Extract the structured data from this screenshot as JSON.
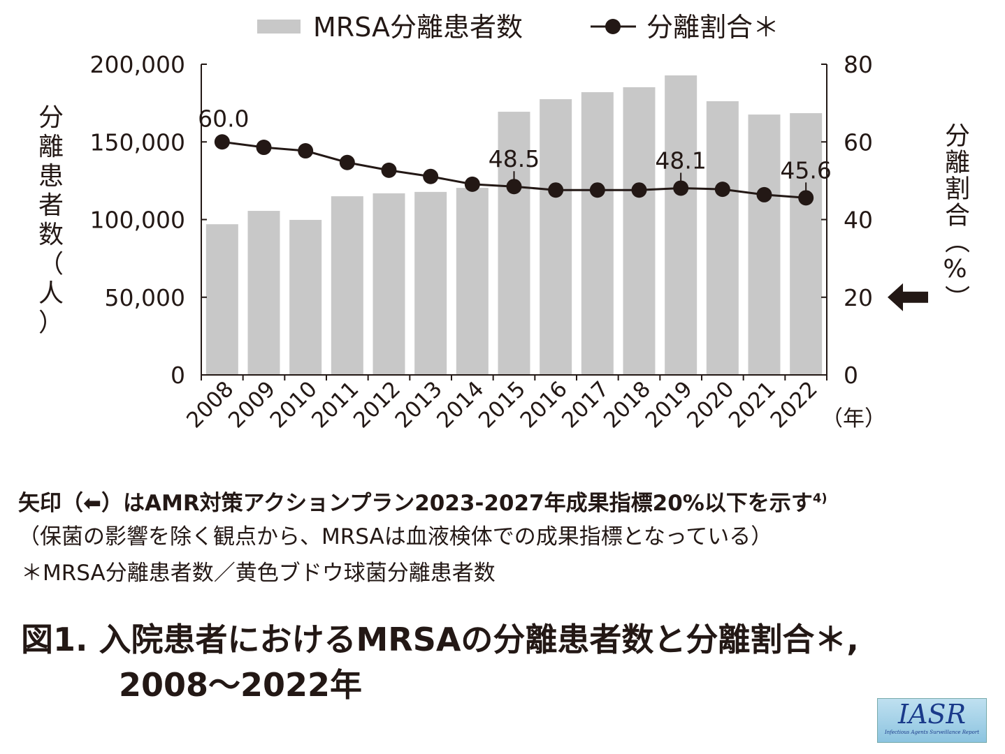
{
  "chart_data": {
    "type": "bar+line",
    "categories": [
      "2008",
      "2009",
      "2010",
      "2011",
      "2012",
      "2013",
      "2014",
      "2015",
      "2016",
      "2017",
      "2018",
      "2019",
      "2020",
      "2021",
      "2022"
    ],
    "series": [
      {
        "name": "MRSA分離患者数",
        "type": "bar",
        "axis": "left",
        "color": "#c8c8c8",
        "values": [
          97000,
          105600,
          99800,
          115000,
          116900,
          117800,
          120400,
          169400,
          177500,
          182000,
          185200,
          192800,
          176200,
          167600,
          168500
        ]
      },
      {
        "name": "分離割合＊",
        "type": "line",
        "axis": "right",
        "color": "#231815",
        "values": [
          60.0,
          58.6,
          57.7,
          54.7,
          52.7,
          51.1,
          49.1,
          48.5,
          47.6,
          47.6,
          47.6,
          48.1,
          47.8,
          46.4,
          45.6
        ]
      }
    ],
    "data_labels": [
      {
        "index": 0,
        "text": "60.0"
      },
      {
        "index": 7,
        "text": "48.5"
      },
      {
        "index": 11,
        "text": "48.1"
      },
      {
        "index": 14,
        "text": "45.6"
      }
    ],
    "ylabel_left": "分離患者数（人）",
    "ylabel_right": "分離割合（%）",
    "xlabel": "（年）",
    "ylim_left": [
      0,
      200000
    ],
    "ylim_right": [
      0,
      80
    ],
    "yticks_left": [
      "0",
      "50,000",
      "100,000",
      "150,000",
      "200,000"
    ],
    "yticks_right": [
      "0",
      "20",
      "40",
      "60",
      "80"
    ],
    "target_arrow_value": 20,
    "legend_position": "top-center"
  },
  "notes": {
    "line1": "矢印（⬅）はAMR対策アクションプラン2023-2027年成果指標20%以下を示す",
    "line1_sup": "4)",
    "line2": "（保菌の影響を除く観点から、MRSAは血液検体での成果指標となっている）",
    "line3": "＊MRSA分離患者数／黄色ブドウ球菌分離患者数"
  },
  "title": {
    "line1": "図1. 入院患者におけるMRSAの分離患者数と分離割合＊,",
    "line2": "2008〜2022年"
  },
  "logo": {
    "text": "IASR",
    "subtitle": "Infectious Agents Surveillance Report"
  }
}
